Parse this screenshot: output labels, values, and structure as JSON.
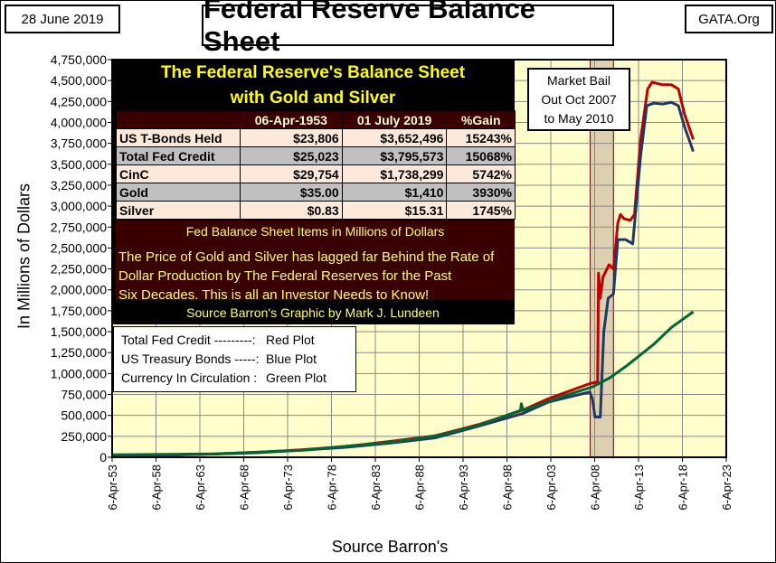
{
  "header": {
    "title": "Federal Reserve Balance Sheet",
    "date": "28 June 2019",
    "source_site": "GATA.Org"
  },
  "table": {
    "title1": "The Federal Reserve's Balance Sheet",
    "title2": "with Gold and Silver",
    "columns": [
      "",
      "06-Apr-1953",
      "01 July 2019",
      "%Gain"
    ],
    "rows": [
      [
        "US T-Bonds Held",
        "$23,806",
        "$3,652,496",
        "15243%"
      ],
      [
        "Total Fed Credit",
        "$25,023",
        "$3,795,573",
        "15068%"
      ],
      [
        "CinC",
        "$29,754",
        "$1,738,299",
        "5742%"
      ],
      [
        "Gold",
        "$35.00",
        "$1,410",
        "3930%"
      ],
      [
        "Silver",
        "$0.83",
        "$15.31",
        "1745%"
      ]
    ],
    "note1": "Fed Balance Sheet Items in Millions of Dollars",
    "note2": "The Price of Gold and Silver has lagged far Behind the Rate of",
    "note3": "Dollar Production by The Federal Reserves for the Past",
    "note4": "Six Decades.  This is all an Investor Needs to Know!",
    "source": "Source Barron's    Graphic by Mark J. Lundeen"
  },
  "legend": [
    {
      "label": "Total Fed Credit ---------:",
      "plot": "Red Plot"
    },
    {
      "label": "US Treasury Bonds -----:",
      "plot": "Blue Plot"
    },
    {
      "label": "Currency In Circulation :",
      "plot": "Green Plot"
    }
  ],
  "annotation": {
    "line1": "Market Bail",
    "line2": "Out Oct 2007",
    "line3": "to May 2010"
  },
  "chart_data": {
    "type": "line",
    "ylabel": "In Millions of Dollars",
    "xlabel": "Source Barron's",
    "ylim": [
      0,
      4750000
    ],
    "xlim": [
      1953.26,
      2023.26
    ],
    "grid": true,
    "ytick_step": 250000,
    "yticks": [
      "0",
      "250,000",
      "500,000",
      "750,000",
      "1,000,000",
      "1,250,000",
      "1,500,000",
      "1,750,000",
      "2,000,000",
      "2,250,000",
      "2,500,000",
      "2,750,000",
      "3,000,000",
      "3,250,000",
      "3,500,000",
      "3,750,000",
      "4,000,000",
      "4,250,000",
      "4,500,000",
      "4,750,000"
    ],
    "xticks": [
      "6-Apr-53",
      "6-Apr-58",
      "6-Apr-63",
      "6-Apr-68",
      "6-Apr-73",
      "6-Apr-78",
      "6-Apr-83",
      "6-Apr-88",
      "6-Apr-93",
      "6-Apr-98",
      "6-Apr-03",
      "6-Apr-08",
      "6-Apr-13",
      "6-Apr-18",
      "6-Apr-23"
    ],
    "shaded_range": [
      2007.75,
      2010.4
    ],
    "colors": {
      "background": "#ffffcc",
      "red": "#c00000",
      "blue": "#1f3864",
      "green": "#006633",
      "band": "#ddd0b0"
    },
    "series": [
      {
        "name": "Total Fed Credit",
        "color": "#c00000",
        "points": [
          [
            1953.26,
            25023
          ],
          [
            1960,
            28000
          ],
          [
            1965,
            40000
          ],
          [
            1970,
            60000
          ],
          [
            1975,
            90000
          ],
          [
            1980,
            130000
          ],
          [
            1985,
            190000
          ],
          [
            1990,
            255000
          ],
          [
            1995,
            390000
          ],
          [
            2000,
            560000
          ],
          [
            2003,
            700000
          ],
          [
            2007.7,
            880000
          ],
          [
            2008.6,
            900000
          ],
          [
            2008.7,
            2200000
          ],
          [
            2008.9,
            1900000
          ],
          [
            2009.2,
            2150000
          ],
          [
            2009.9,
            2300000
          ],
          [
            2010.4,
            2250000
          ],
          [
            2010.9,
            2800000
          ],
          [
            2011.2,
            2900000
          ],
          [
            2011.6,
            2850000
          ],
          [
            2012.3,
            2830000
          ],
          [
            2012.8,
            2900000
          ],
          [
            2013.5,
            3800000
          ],
          [
            2014.3,
            4400000
          ],
          [
            2014.8,
            4480000
          ],
          [
            2016,
            4450000
          ],
          [
            2017,
            4450000
          ],
          [
            2017.8,
            4400000
          ],
          [
            2018.5,
            4100000
          ],
          [
            2019.5,
            3795573
          ]
        ]
      },
      {
        "name": "US Treasury Bonds",
        "color": "#1f3864",
        "points": [
          [
            1953.26,
            23806
          ],
          [
            1960,
            26000
          ],
          [
            1965,
            38000
          ],
          [
            1970,
            55000
          ],
          [
            1975,
            85000
          ],
          [
            1980,
            120000
          ],
          [
            1985,
            170000
          ],
          [
            1990,
            230000
          ],
          [
            1995,
            370000
          ],
          [
            2000,
            520000
          ],
          [
            2003,
            660000
          ],
          [
            2007.7,
            780000
          ],
          [
            2008.0,
            700000
          ],
          [
            2008.3,
            480000
          ],
          [
            2008.9,
            480000
          ],
          [
            2009.3,
            1500000
          ],
          [
            2009.8,
            1900000
          ],
          [
            2010.4,
            1950000
          ],
          [
            2010.9,
            2600000
          ],
          [
            2011.8,
            2600000
          ],
          [
            2012.6,
            2550000
          ],
          [
            2013.5,
            3600000
          ],
          [
            2014.2,
            4200000
          ],
          [
            2015,
            4230000
          ],
          [
            2016,
            4220000
          ],
          [
            2017,
            4240000
          ],
          [
            2017.8,
            4200000
          ],
          [
            2018.5,
            3950000
          ],
          [
            2019.5,
            3652496
          ]
        ]
      },
      {
        "name": "Currency In Circulation",
        "color": "#006633",
        "points": [
          [
            1953.26,
            29754
          ],
          [
            1965,
            40000
          ],
          [
            1975,
            85000
          ],
          [
            1985,
            180000
          ],
          [
            1990,
            250000
          ],
          [
            1995,
            380000
          ],
          [
            1999.8,
            560000
          ],
          [
            1999.9,
            640000
          ],
          [
            2000.1,
            560000
          ],
          [
            2005,
            740000
          ],
          [
            2008,
            840000
          ],
          [
            2010,
            950000
          ],
          [
            2012,
            1100000
          ],
          [
            2015,
            1350000
          ],
          [
            2017,
            1550000
          ],
          [
            2019.5,
            1738299
          ]
        ]
      }
    ]
  }
}
